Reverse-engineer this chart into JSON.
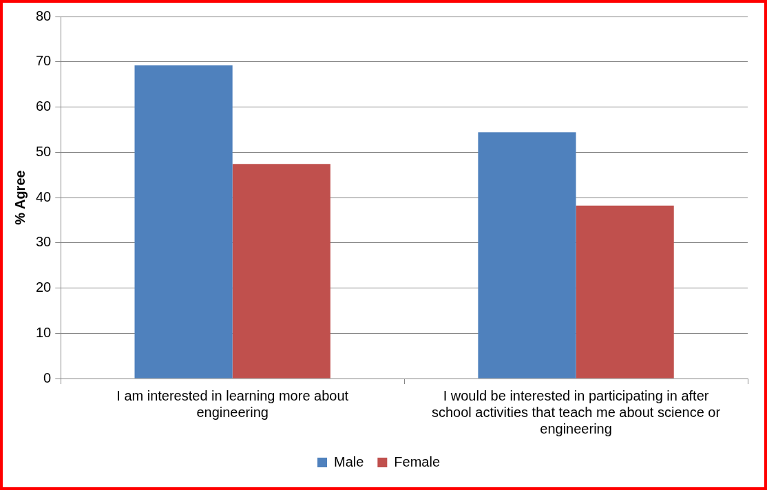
{
  "chart_data": {
    "type": "bar",
    "ylabel": "% Agree",
    "categories": [
      "I am interested in learning more about engineering",
      "I would be interested in participating in after school activities that teach me about science or engineering"
    ],
    "series": [
      {
        "name": "Male",
        "color": "#4f81bd",
        "values": [
          69.2,
          54.4
        ]
      },
      {
        "name": "Female",
        "color": "#c0504d",
        "values": [
          47.4,
          38.2
        ]
      }
    ],
    "ylim": [
      0,
      80
    ],
    "yticks": [
      0,
      10,
      20,
      30,
      40,
      50,
      60,
      70,
      80
    ],
    "grid": "y",
    "legend": "bottom"
  }
}
